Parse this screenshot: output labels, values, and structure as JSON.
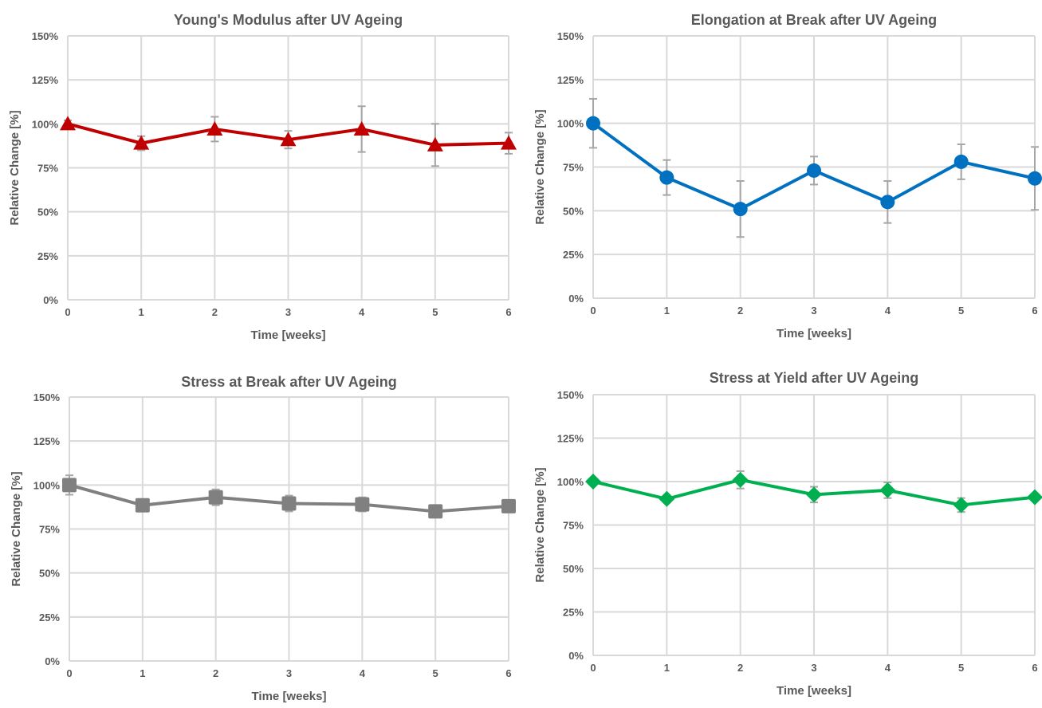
{
  "chart_data": [
    {
      "type": "line",
      "title": "Young's Modulus after UV Ageing",
      "xlabel": "Time [weeks]",
      "ylabel": "Relative Change [%]",
      "x": [
        0,
        1,
        2,
        3,
        4,
        5,
        6
      ],
      "x_tick_labels": [
        "0",
        "1",
        "2",
        "3",
        "4",
        "5",
        "6"
      ],
      "ylim": [
        0,
        150
      ],
      "y_ticks": [
        0,
        25,
        50,
        75,
        100,
        125,
        150
      ],
      "y_tick_labels": [
        "0%",
        "25%",
        "50%",
        "75%",
        "100%",
        "125%",
        "150%"
      ],
      "grid": true,
      "series": [
        {
          "values": [
            100,
            89,
            97,
            91,
            97,
            88,
            89
          ],
          "error": [
            2,
            4,
            7,
            5,
            13,
            12,
            6
          ],
          "color": "#c00000",
          "marker": "triangle"
        }
      ]
    },
    {
      "type": "line",
      "title": "Elongation at Break after UV Ageing",
      "xlabel": "Time [weeks]",
      "ylabel": "Relative Change [%]",
      "x": [
        0,
        1,
        2,
        3,
        4,
        5,
        6
      ],
      "x_tick_labels": [
        "0",
        "1",
        "2",
        "3",
        "4",
        "5",
        "6"
      ],
      "ylim": [
        0,
        150
      ],
      "y_ticks": [
        0,
        25,
        50,
        75,
        100,
        125,
        150
      ],
      "y_tick_labels": [
        "0%",
        "25%",
        "50%",
        "75%",
        "100%",
        "125%",
        "150%"
      ],
      "grid": true,
      "series": [
        {
          "values": [
            100,
            69,
            51,
            73,
            55,
            78,
            68.5
          ],
          "error": [
            14,
            10,
            16,
            8,
            12,
            10,
            18
          ],
          "color": "#0070c0",
          "marker": "circle"
        }
      ]
    },
    {
      "type": "line",
      "title": "Stress at Break after UV Ageing",
      "xlabel": "Time [weeks]",
      "ylabel": "Relative Change [%]",
      "x": [
        0,
        1,
        2,
        3,
        4,
        5,
        6
      ],
      "x_tick_labels": [
        "0",
        "1",
        "2",
        "3",
        "4",
        "5",
        "6"
      ],
      "ylim": [
        0,
        150
      ],
      "y_ticks": [
        0,
        25,
        50,
        75,
        100,
        125,
        150
      ],
      "y_tick_labels": [
        "0%",
        "25%",
        "50%",
        "75%",
        "100%",
        "125%",
        "150%"
      ],
      "grid": true,
      "series": [
        {
          "values": [
            100,
            88.5,
            93,
            89.5,
            89,
            85,
            88
          ],
          "error": [
            5.5,
            2,
            4.5,
            4.5,
            4,
            2,
            2
          ],
          "color": "#808080",
          "marker": "square"
        }
      ]
    },
    {
      "type": "line",
      "title": "Stress at Yield after UV Ageing",
      "xlabel": "Time [weeks]",
      "ylabel": "Relative Change [%]",
      "x": [
        0,
        1,
        2,
        3,
        4,
        5,
        6
      ],
      "x_tick_labels": [
        "0",
        "1",
        "2",
        "3",
        "4",
        "5",
        "6"
      ],
      "ylim": [
        0,
        150
      ],
      "y_ticks": [
        0,
        25,
        50,
        75,
        100,
        125,
        150
      ],
      "y_tick_labels": [
        "0%",
        "25%",
        "50%",
        "75%",
        "100%",
        "125%",
        "150%"
      ],
      "grid": true,
      "series": [
        {
          "values": [
            100,
            90,
            101,
            92.5,
            95,
            86.5,
            91
          ],
          "error": [
            1.5,
            2,
            5,
            4.5,
            4.5,
            4,
            2
          ],
          "color": "#00b050",
          "marker": "diamond"
        }
      ]
    }
  ]
}
